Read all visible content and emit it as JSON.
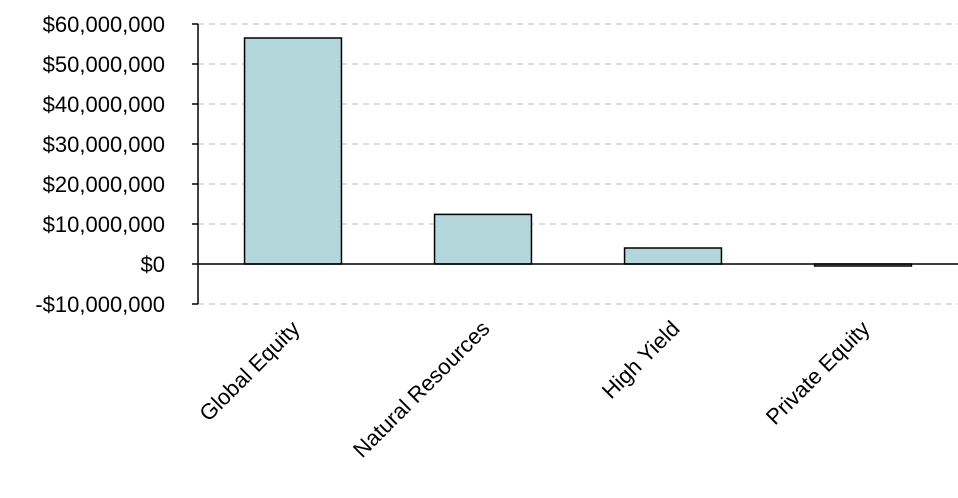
{
  "chart_data": {
    "type": "bar",
    "categories": [
      "Global Equity",
      "Natural Resources",
      "High Yield",
      "Private Equity"
    ],
    "values": [
      56500000,
      12400000,
      4000000,
      -500000
    ],
    "title": "",
    "xlabel": "",
    "ylabel": "",
    "ylim": [
      -10000000,
      60000000
    ],
    "yticks": [
      60000000,
      50000000,
      40000000,
      30000000,
      20000000,
      10000000,
      0,
      -10000000
    ],
    "ytick_labels": [
      "$60,000,000",
      "$50,000,000",
      "$40,000,000",
      "$30,000,000",
      "$20,000,000",
      "$10,000,000",
      "$0",
      "-$10,000,000"
    ],
    "grid": true,
    "bar_color": "#b4d7dc"
  }
}
